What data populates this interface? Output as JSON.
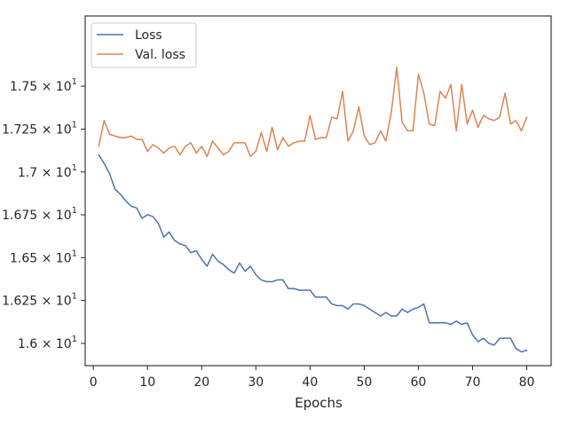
{
  "chart_data": {
    "type": "line",
    "xlabel": "Epochs",
    "ylabel": "",
    "title": "",
    "xlim": [
      -1.5,
      84.5
    ],
    "ylim": [
      15.87,
      17.91
    ],
    "xticks": [
      0,
      10,
      20,
      30,
      40,
      50,
      60,
      70,
      80
    ],
    "yticks": [
      {
        "value": 16.0,
        "base": "1.6",
        "exp": "1"
      },
      {
        "value": 16.25,
        "base": "1.625",
        "exp": "1"
      },
      {
        "value": 16.5,
        "base": "1.65",
        "exp": "1"
      },
      {
        "value": 16.75,
        "base": "1.675",
        "exp": "1"
      },
      {
        "value": 17.0,
        "base": "1.7",
        "exp": "1"
      },
      {
        "value": 17.25,
        "base": "1.725",
        "exp": "1"
      },
      {
        "value": 17.5,
        "base": "1.75",
        "exp": "1"
      }
    ],
    "ytick_mid": " × 10",
    "grid": false,
    "legend_position": "top-left",
    "x": [
      1,
      2,
      3,
      4,
      5,
      6,
      7,
      8,
      9,
      10,
      11,
      12,
      13,
      14,
      15,
      16,
      17,
      18,
      19,
      20,
      21,
      22,
      23,
      24,
      25,
      26,
      27,
      28,
      29,
      30,
      31,
      32,
      33,
      34,
      35,
      36,
      37,
      38,
      39,
      40,
      41,
      42,
      43,
      44,
      45,
      46,
      47,
      48,
      49,
      50,
      51,
      52,
      53,
      54,
      55,
      56,
      57,
      58,
      59,
      60,
      61,
      62,
      63,
      64,
      65,
      66,
      67,
      68,
      69,
      70,
      71,
      72,
      73,
      74,
      75,
      76,
      77,
      78,
      79,
      80
    ],
    "series": [
      {
        "name": "Loss",
        "color": "#4c72b0",
        "values": [
          17.1,
          17.05,
          16.99,
          16.9,
          16.87,
          16.83,
          16.8,
          16.79,
          16.73,
          16.75,
          16.74,
          16.7,
          16.62,
          16.65,
          16.6,
          16.58,
          16.57,
          16.53,
          16.54,
          16.49,
          16.45,
          16.52,
          16.48,
          16.46,
          16.43,
          16.41,
          16.47,
          16.42,
          16.45,
          16.4,
          16.37,
          16.36,
          16.36,
          16.37,
          16.37,
          16.32,
          16.32,
          16.31,
          16.31,
          16.31,
          16.27,
          16.27,
          16.27,
          16.23,
          16.22,
          16.22,
          16.2,
          16.23,
          16.23,
          16.22,
          16.2,
          16.18,
          16.16,
          16.18,
          16.16,
          16.16,
          16.2,
          16.18,
          16.2,
          16.21,
          16.23,
          16.12,
          16.12,
          16.12,
          16.12,
          16.11,
          16.13,
          16.11,
          16.12,
          16.05,
          16.01,
          16.03,
          16.0,
          15.99,
          16.03,
          16.03,
          16.03,
          15.97,
          15.95,
          15.96
        ]
      },
      {
        "name": "Val. loss",
        "color": "#dd8452",
        "values": [
          17.15,
          17.3,
          17.22,
          17.21,
          17.2,
          17.2,
          17.21,
          17.19,
          17.19,
          17.12,
          17.16,
          17.14,
          17.11,
          17.14,
          17.15,
          17.1,
          17.15,
          17.17,
          17.11,
          17.15,
          17.09,
          17.18,
          17.14,
          17.1,
          17.12,
          17.17,
          17.17,
          17.17,
          17.09,
          17.12,
          17.23,
          17.12,
          17.26,
          17.13,
          17.2,
          17.15,
          17.17,
          17.18,
          17.18,
          17.33,
          17.19,
          17.2,
          17.2,
          17.32,
          17.31,
          17.47,
          17.18,
          17.24,
          17.38,
          17.21,
          17.16,
          17.17,
          17.24,
          17.18,
          17.35,
          17.61,
          17.29,
          17.24,
          17.24,
          17.57,
          17.46,
          17.28,
          17.27,
          17.47,
          17.43,
          17.51,
          17.24,
          17.51,
          17.28,
          17.36,
          17.26,
          17.33,
          17.31,
          17.3,
          17.32,
          17.46,
          17.28,
          17.3,
          17.24,
          17.32
        ]
      }
    ]
  }
}
